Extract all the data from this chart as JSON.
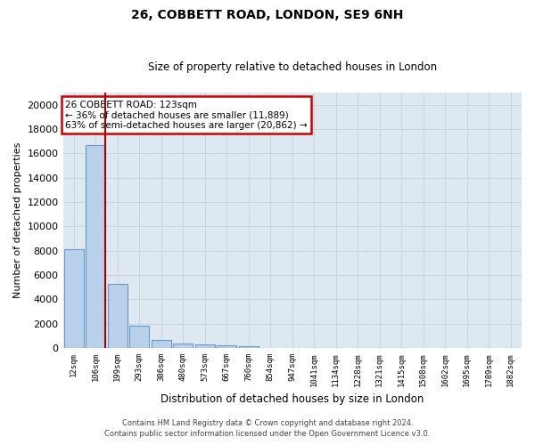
{
  "title1": "26, COBBETT ROAD, LONDON, SE9 6NH",
  "title2": "Size of property relative to detached houses in London",
  "xlabel": "Distribution of detached houses by size in London",
  "ylabel": "Number of detached properties",
  "bar_color": "#b8d0ea",
  "bar_edge_color": "#6699cc",
  "vline_color": "#aa0000",
  "annotation_text": "26 COBBETT ROAD: 123sqm\n← 36% of detached houses are smaller (11,889)\n63% of semi-detached houses are larger (20,862) →",
  "annotation_box_color": "#ffffff",
  "annotation_box_edge": "#cc0000",
  "categories": [
    "12sqm",
    "106sqm",
    "199sqm",
    "293sqm",
    "386sqm",
    "480sqm",
    "573sqm",
    "667sqm",
    "760sqm",
    "854sqm",
    "947sqm",
    "1041sqm",
    "1134sqm",
    "1228sqm",
    "1321sqm",
    "1415sqm",
    "1508sqm",
    "1602sqm",
    "1695sqm",
    "1789sqm",
    "1882sqm"
  ],
  "values": [
    8100,
    16650,
    5300,
    1850,
    700,
    350,
    280,
    220,
    160,
    0,
    0,
    0,
    0,
    0,
    0,
    0,
    0,
    0,
    0,
    0,
    0
  ],
  "ylim": [
    0,
    21000
  ],
  "yticks": [
    0,
    2000,
    4000,
    6000,
    8000,
    10000,
    12000,
    14000,
    16000,
    18000,
    20000
  ],
  "grid_color": "#c8d4e0",
  "bg_color": "#dde8f0",
  "footer1": "Contains HM Land Registry data © Crown copyright and database right 2024.",
  "footer2": "Contains public sector information licensed under the Open Government Licence v3.0."
}
